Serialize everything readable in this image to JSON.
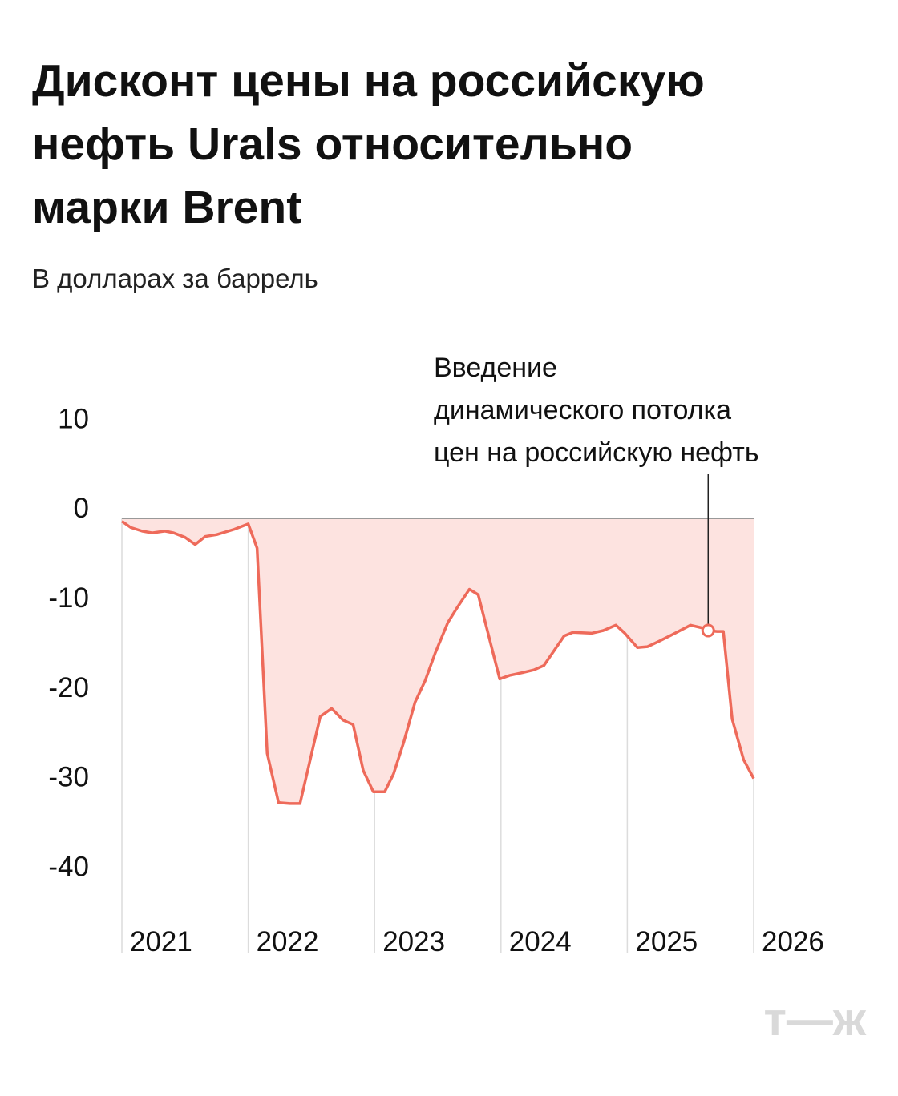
{
  "chart_data": {
    "type": "line",
    "title": [
      "Дисконт цены на российскую",
      "нефть Urals относительно",
      "марки Brent"
    ],
    "subtitle": "В долларах за баррель",
    "x": [
      2021.0,
      2021.07,
      2021.16,
      2021.24,
      2021.34,
      2021.41,
      2021.5,
      2021.58,
      2021.66,
      2021.75,
      2021.89,
      2022.0,
      2022.07,
      2022.15,
      2022.24,
      2022.33,
      2022.41,
      2022.57,
      2022.66,
      2022.75,
      2022.83,
      2022.91,
      2022.99,
      2023.08,
      2023.15,
      2023.23,
      2023.32,
      2023.4,
      2023.48,
      2023.58,
      2023.66,
      2023.75,
      2023.82,
      2023.99,
      2024.07,
      2024.17,
      2024.26,
      2024.34,
      2024.5,
      2024.57,
      2024.72,
      2024.81,
      2024.91,
      2024.98,
      2025.08,
      2025.16,
      2025.25,
      2025.35,
      2025.5,
      2025.59,
      2025.64,
      2025.71,
      2025.76,
      2025.83,
      2025.92,
      2026.0
    ],
    "series": [
      {
        "color": "#ee6a5a",
        "fill": "#fde3e0",
        "values": [
          -0.3,
          -1.0,
          -1.4,
          -1.6,
          -1.4,
          -1.6,
          -2.1,
          -2.9,
          -2.0,
          -1.8,
          -1.2,
          -0.6,
          -3.3,
          -26.2,
          -31.7,
          -31.8,
          -31.8,
          -22.1,
          -21.2,
          -22.5,
          -23.0,
          -28.1,
          -30.5,
          -30.5,
          -28.5,
          -25.0,
          -20.5,
          -18.1,
          -15.0,
          -11.6,
          -9.8,
          -7.9,
          -8.5,
          -17.9,
          -17.5,
          -17.2,
          -16.9,
          -16.4,
          -13.1,
          -12.7,
          -12.8,
          -12.5,
          -11.9,
          -12.8,
          -14.4,
          -14.3,
          -13.7,
          -13.0,
          -11.9,
          -12.2,
          -12.5,
          -12.6,
          -12.6,
          -22.4,
          -26.9,
          -29.0
        ]
      }
    ],
    "xlim": [
      2021,
      2026
    ],
    "xticks": [
      2021,
      2022,
      2023,
      2024,
      2025,
      2026
    ],
    "xgrid": true,
    "ylim": [
      -48,
      12
    ],
    "yticks": [
      10,
      0,
      -10,
      -20,
      -30,
      -40
    ],
    "grid": false,
    "annotation": {
      "lines": [
        "Введение",
        "динамического потолка",
        "цен на российскую нефть"
      ],
      "point": 50
    },
    "logo": "т—ж"
  }
}
